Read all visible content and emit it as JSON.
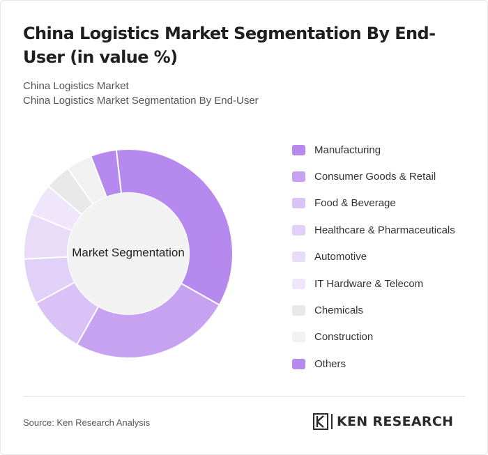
{
  "header": {
    "title": "China Logistics Market Segmentation By End-User (in value %)",
    "subtitle_1": "China Logistics Market",
    "subtitle_2": "China Logistics Market Segmentation By End-User"
  },
  "chart_data": {
    "type": "pie",
    "variant": "donut",
    "center_label": "Market Segmentation",
    "categories": [
      "Manufacturing",
      "Consumer Goods & Retail",
      "Food & Beverage",
      "Healthcare & Pharmaceuticals",
      "Automotive",
      "IT Hardware & Telecom",
      "Chemicals",
      "Construction",
      "Others"
    ],
    "values": [
      35,
      25,
      9,
      7,
      7,
      5,
      4,
      4,
      4
    ],
    "colors": [
      "#b589ee",
      "#c7a2f1",
      "#d9c2f6",
      "#e1d0f8",
      "#e8dcf9",
      "#efe6fb",
      "#e8e8e8",
      "#f1f1f1",
      "#b589ee"
    ],
    "legend_position": "right"
  },
  "footer": {
    "source": "Source: Ken Research Analysis",
    "logo_text": "KEN RESEARCH"
  }
}
